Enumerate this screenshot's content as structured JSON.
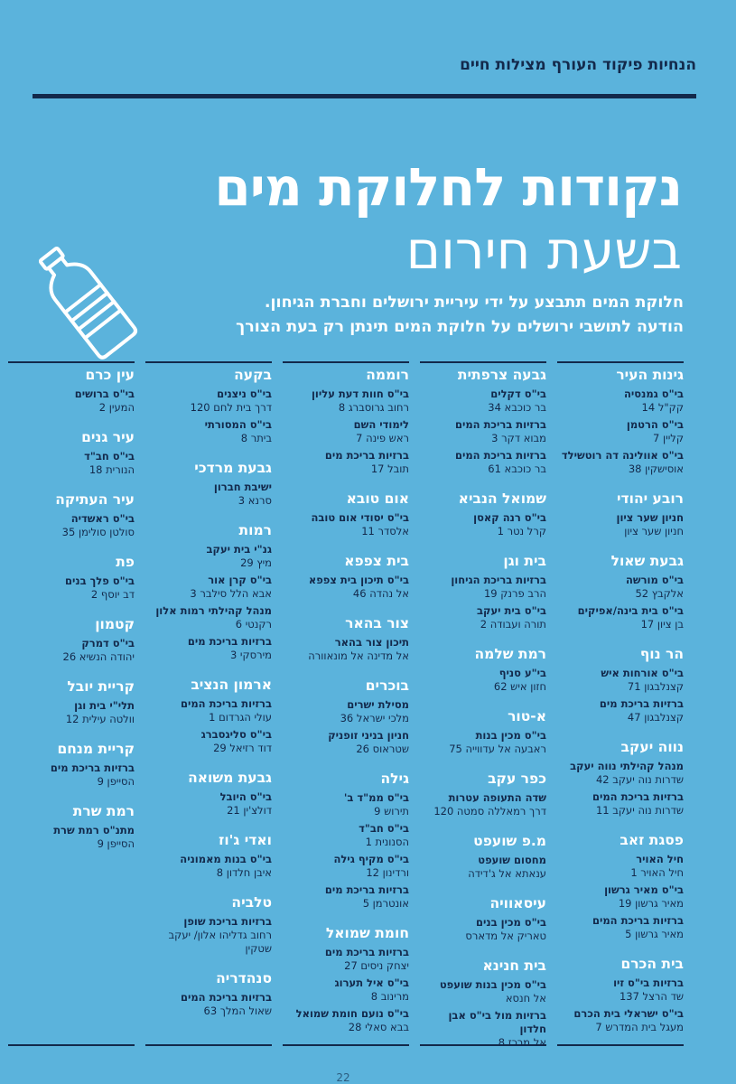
{
  "header": {
    "top_line": "הנחיות פיקוד העורף מצילות חיים",
    "title_main": "נקודות לחלוקת מים",
    "title_sub": "בשעת חירום",
    "intro_line1": "חלוקת המים תתבצע על ידי עיריית ירושלים וחברת הגיחון.",
    "intro_line2": "הודעה לתושבי ירושלים על חלוקת המים תינתן רק בעת הצורך"
  },
  "page_number": "22",
  "columns": [
    {
      "sections": [
        {
          "area": "גינות העיר",
          "entries": [
            {
              "name": "בי\"ס גמנסיה",
              "address": "קק\"ל 14"
            },
            {
              "name": "בי\"ס הרטמן",
              "address": "קליין 7"
            },
            {
              "name": "בי\"ס אוולינה דה רוטשילד",
              "address": "אוסישקין 38"
            }
          ]
        },
        {
          "area": "רובע יהודי",
          "entries": [
            {
              "name": "חניון שער ציון",
              "address": "חניון שער ציון"
            }
          ]
        },
        {
          "area": "גבעת שאול",
          "entries": [
            {
              "name": "בי\"ס מורשה",
              "address": "אלקבץ 52"
            },
            {
              "name": "בי\"ס בית בינה/אפיקים",
              "address": "בן ציון 17"
            }
          ]
        },
        {
          "area": "הר נוף",
          "entries": [
            {
              "name": "בי\"ס אורחות איש",
              "address": "קצנלבגון 71"
            },
            {
              "name": "ברזיות בריכת מים",
              "address": "קצנלבגון 47"
            }
          ]
        },
        {
          "area": "נווה יעקב",
          "entries": [
            {
              "name": "מנהל קהילתי נווה יעקב",
              "address": "שדרות נוה יעקב 42"
            },
            {
              "name": "ברזיות בריכת המים",
              "address": "שדרות נוה יעקב 11"
            }
          ]
        },
        {
          "area": "פסגת זאב",
          "entries": [
            {
              "name": "חיל האויר",
              "address": "חיל האויר 1"
            },
            {
              "name": "בי\"ס מאיר גרשון",
              "address": "מאיר גרשון 19"
            },
            {
              "name": "ברזיות בריכת המים",
              "address": "מאיר גרשון 5"
            }
          ]
        },
        {
          "area": "בית הכרם",
          "entries": [
            {
              "name": "ברזיות בי\"ס זיו",
              "address": "שד הרצל 137"
            },
            {
              "name": "בי\"ס ישראלי בית הכרם",
              "address": "מעגל בית המדרש 7"
            }
          ]
        }
      ]
    },
    {
      "sections": [
        {
          "area": "גבעה צרפתית",
          "entries": [
            {
              "name": "בי\"ס דקלים",
              "address": "בר כוכבא 34"
            },
            {
              "name": "ברזיות בריכת המים",
              "address": "מבוא דקר 3"
            },
            {
              "name": "ברזיות בריכת המים",
              "address": "בר כוכבא 61"
            }
          ]
        },
        {
          "area": "שמואל הנביא",
          "entries": [
            {
              "name": "בי\"ס רנה קאסן",
              "address": "קרל נטר 1"
            }
          ]
        },
        {
          "area": "בית וגן",
          "entries": [
            {
              "name": "ברזיות בריכת הגיחון",
              "address": "הרב פרנק 19"
            },
            {
              "name": "בי\"ס בית יעקב",
              "address": "תורה ועבודה 2"
            }
          ]
        },
        {
          "area": "רמת שלמה",
          "entries": [
            {
              "name": "בי\"ע סניף",
              "address": "חזון איש 62"
            }
          ]
        },
        {
          "area": "א-טור",
          "entries": [
            {
              "name": "בי\"ס מכין בנות",
              "address": "ראבעה אל עדווייה 75"
            }
          ]
        },
        {
          "area": "כפר עקב",
          "entries": [
            {
              "name": "שדה התעופה עטרות",
              "address": "דרך רמאללה סמטה 120"
            }
          ]
        },
        {
          "area": "מ.פ שועפט",
          "entries": [
            {
              "name": "מחסום שועפט",
              "address": "ענאתא אל ג'דידה"
            }
          ]
        },
        {
          "area": "עיסאוויה",
          "entries": [
            {
              "name": "בי\"ס מכין בנים",
              "address": "טאריק אל מדארס"
            }
          ]
        },
        {
          "area": "בית חנינא",
          "entries": [
            {
              "name": "בי\"ס מכין בנות שועפט",
              "address": "אל חנסא"
            },
            {
              "name": "ברזיות מול בי\"ס אבן חלדון",
              "address": "אל מרכז 8"
            }
          ]
        }
      ]
    },
    {
      "sections": [
        {
          "area": "רוממה",
          "entries": [
            {
              "name": "בי\"ס חוות דעת עליון",
              "address": "רחוב גרוסברג 8"
            },
            {
              "name": "לימודי השם",
              "address": "ראש פינה 7"
            },
            {
              "name": "ברזיות בריכת מים",
              "address": "תובל 17"
            }
          ]
        },
        {
          "area": "אום טובא",
          "entries": [
            {
              "name": "בי\"ס יסודי אום טובה",
              "address": "אלסדר 11"
            }
          ]
        },
        {
          "area": "בית צפפא",
          "entries": [
            {
              "name": "בי\"ס תיכון בית צפפא",
              "address": "אל נהדה 46"
            }
          ]
        },
        {
          "area": "צור בהאר",
          "entries": [
            {
              "name": "תיכון צור בהאר",
              "address": "אל מדינה אל מונאוורה"
            }
          ]
        },
        {
          "area": "בוכרים",
          "entries": [
            {
              "name": "מסילת ישרים",
              "address": "מלכי ישראל 36"
            },
            {
              "name": "חניון בניני זופניק",
              "address": "שטראוס 26"
            }
          ]
        },
        {
          "area": "גילה",
          "entries": [
            {
              "name": "בי\"ס ממ\"ד ב'",
              "address": "תירוש 9"
            },
            {
              "name": "בי\"ס חב\"ד",
              "address": "הסנונית 1"
            },
            {
              "name": "בי\"ס מקיף גילה",
              "address": "ורדינון 12"
            },
            {
              "name": "ברזיות בריכת מים",
              "address": "אונטרמן 5"
            }
          ]
        },
        {
          "area": "חומת שמואל",
          "entries": [
            {
              "name": "ברזיות בריכת מים",
              "address": "יצחק ניסים 27"
            },
            {
              "name": "בי\"ס איל תערוג",
              "address": "מרינוב 8"
            },
            {
              "name": "בי\"ס נועם חומת שמואל",
              "address": "בבא סאלי 28"
            }
          ]
        }
      ]
    },
    {
      "sections": [
        {
          "area": "בקעה",
          "entries": [
            {
              "name": "בי\"ס ניצנים",
              "address": "דרך בית לחם 120"
            },
            {
              "name": "בי\"ס המסורתי",
              "address": "ביתר 8"
            }
          ]
        },
        {
          "area": "גבעת מרדכי",
          "entries": [
            {
              "name": "ישיבת חברון",
              "address": "סרנא 3"
            }
          ]
        },
        {
          "area": "רמות",
          "entries": [
            {
              "name": "גנ\"י בית יעקב",
              "address": "מיץ 29"
            },
            {
              "name": "בי\"ס קרן אור",
              "address": "אבא הלל סילבר 3"
            },
            {
              "name": "מנהל קהילתי רמות אלון",
              "address": "רקנטי 6"
            },
            {
              "name": "ברזיות בריכת מים",
              "address": "מירסקי 3"
            }
          ]
        },
        {
          "area": "ארמון הנציב",
          "entries": [
            {
              "name": "ברזיות בריכת המים",
              "address": "עולי הגרדום 1"
            },
            {
              "name": "בי\"ס סליגסברג",
              "address": "דוד רזיאל 29"
            }
          ]
        },
        {
          "area": "גבעת משואה",
          "entries": [
            {
              "name": "בי\"ס היובל",
              "address": "דולצ'ין 21"
            }
          ]
        },
        {
          "area": "ואדי ג'וז",
          "entries": [
            {
              "name": "בי\"ס בנות מאמוניה",
              "address": "איבן חלדון 8"
            }
          ]
        },
        {
          "area": "טלביה",
          "entries": [
            {
              "name": "ברזיות בריכת שופן",
              "address": "רחוב גדליהו אלון/ יעקב שטקין"
            }
          ]
        },
        {
          "area": "סנהדריה",
          "entries": [
            {
              "name": "ברזיות בריכת המים",
              "address": "שאול המלך 63"
            }
          ]
        }
      ]
    },
    {
      "sections": [
        {
          "area": "עין כרם",
          "entries": [
            {
              "name": "בי\"ס ברושים",
              "address": "המעין 2"
            }
          ]
        },
        {
          "area": "עיר גנים",
          "entries": [
            {
              "name": "בי\"ס חב\"ד",
              "address": "הנורית 18"
            }
          ]
        },
        {
          "area": "עיר העתיקה",
          "entries": [
            {
              "name": "בי\"ס ראשדיה",
              "address": "סולטן סולימן 35"
            }
          ]
        },
        {
          "area": "פת",
          "entries": [
            {
              "name": "בי\"ס פלך בנים",
              "address": "דב יוסף 2"
            }
          ]
        },
        {
          "area": "קטמון",
          "entries": [
            {
              "name": "בי\"ס דמרק",
              "address": "יהודה הנשיא 26"
            }
          ]
        },
        {
          "area": "קריית יובל",
          "entries": [
            {
              "name": "תלי\"י בית וגן",
              "address": "וולטה עילית 12"
            }
          ]
        },
        {
          "area": "קריית מנחם",
          "entries": [
            {
              "name": "ברזיות בריכת מים",
              "address": "הסייפן 9"
            }
          ]
        },
        {
          "area": "רמת שרת",
          "entries": [
            {
              "name": "מתנ\"ס רמת שרת",
              "address": "הסייפן 9"
            }
          ]
        }
      ]
    }
  ]
}
